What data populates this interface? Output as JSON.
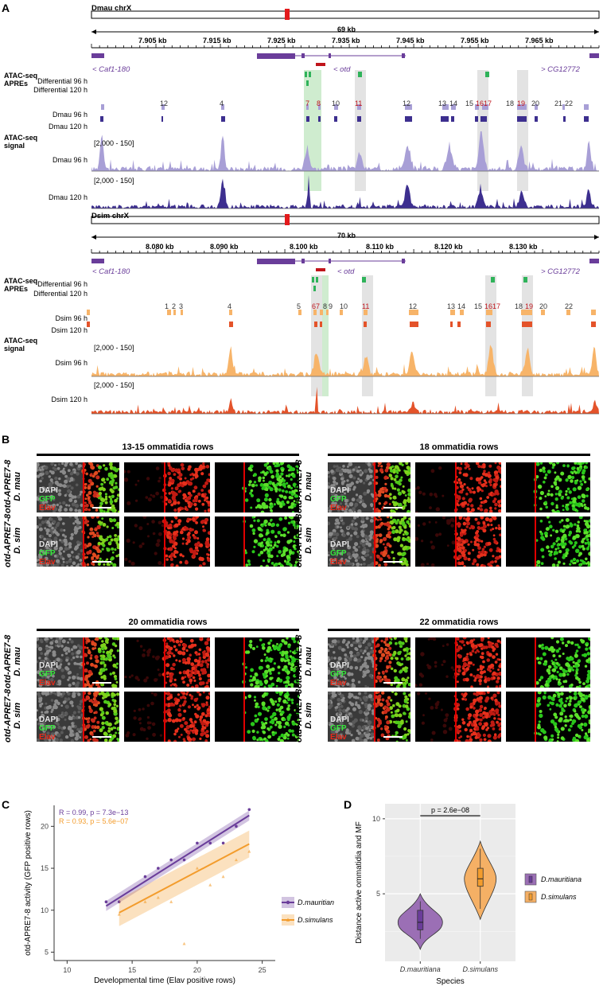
{
  "panelA": {
    "letter": "A",
    "dmau": {
      "chr": "Dmau chrX",
      "span": "69 kb",
      "ticks": [
        "7.905 kb",
        "7.915 kb",
        "7.925 kb",
        "7.935 kb",
        "7.945 kb",
        "7.955 kb",
        "7.965 kb"
      ],
      "genes": {
        "left": "< Caf1-180",
        "middle": "< otd",
        "right": "> CG12772"
      },
      "track_labels": [
        "Differential 96 h",
        "Differential 120 h",
        "Dmau 96 h",
        "Dmau 120 h",
        "Dmau 96 h",
        "Dmau 120 h"
      ],
      "group_labels": {
        "apres_1": "ATAC-seq",
        "apres_2": "APREs",
        "signal_1": "ATAC-seq",
        "signal_2": "signal"
      },
      "range": [
        "[2,000 - 150]",
        "[2,000 - 150]"
      ],
      "apre_numbers": [
        "12",
        "4",
        "7",
        "8",
        "10",
        "11",
        "12",
        "13",
        "14",
        "15",
        "1617",
        "18",
        "19",
        "20",
        "21",
        "22"
      ]
    },
    "dsim": {
      "chr": "Dsim chrX",
      "span": "70 kb",
      "ticks": [
        "8.080 kb",
        "8.090 kb",
        "8.100 kb",
        "8.110 kb",
        "8.120 kb",
        "8.130 kb"
      ],
      "genes": {
        "left": "< Caf1-180",
        "middle": "< otd",
        "right": "> CG12772"
      },
      "track_labels": [
        "Differential 96 h",
        "Differential 120 h",
        "Dsim 96 h",
        "Dsim 120 h",
        "Dsim 96 h",
        "Dsim 120 h"
      ],
      "group_labels": {
        "apres_1": "ATAC-seq",
        "apres_2": "APREs",
        "signal_1": "ATAC-seq",
        "signal_2": "signal"
      },
      "range": [
        "[2,000 - 150]",
        "[2,000 - 150]"
      ],
      "apre_numbers": [
        "1",
        "2",
        "3",
        "4",
        "5",
        "67",
        "8",
        "9",
        "10",
        "11",
        "12",
        "13",
        "14",
        "15",
        "1617",
        "18",
        "19",
        "20",
        "22"
      ]
    },
    "colors": {
      "dmau_light": "#a89fd6",
      "dmau_dark": "#3d2f8f",
      "dsim_light": "#f7b469",
      "dsim_dark": "#e4532a",
      "diff": "#2fb35a",
      "gene": "#6a3d9a",
      "highlight_green": "#cfeccf",
      "highlight_grey": "#e3e3e3",
      "marker": "#e31a1c"
    }
  },
  "panelB": {
    "letter": "B",
    "groups": [
      {
        "title": "13-15 ommatidia rows"
      },
      {
        "title": "18 ommatidia rows"
      },
      {
        "title": "20 ommatidia rows"
      },
      {
        "title": "22 ommatidia rows"
      }
    ],
    "row_labels": {
      "construct": "otd-APRE7-8",
      "mau": "D. mau",
      "sim": "D. sim"
    },
    "overlay": {
      "dapi": "DAPI",
      "gfp": "GFP",
      "elav": "Elav"
    }
  },
  "panelC": {
    "letter": "C",
    "stats": {
      "mau": "R = 0.99, p = 7.3e−13",
      "sim": "R = 0.93, p = 5.6e−07"
    },
    "chart_data": {
      "type": "scatter",
      "xlabel": "Developmental time (Elav positive rows)",
      "ylabel": "otd-APRE7-8 activity (GFP positive rows)",
      "xlim": [
        9,
        26
      ],
      "ylim": [
        4,
        22.5
      ],
      "xticks": [
        10,
        15,
        20,
        25
      ],
      "yticks": [
        5,
        10,
        15,
        20
      ],
      "series": [
        {
          "name": "D.mauritiana",
          "color": "#6a3d9a",
          "x": [
            13,
            14,
            16,
            17,
            18,
            19,
            20,
            21,
            22,
            23,
            24
          ],
          "y": [
            11,
            11,
            14,
            15,
            16,
            16,
            18,
            18,
            18,
            20,
            22
          ],
          "fit": [
            [
              13,
              10.5
            ],
            [
              24,
              21.3
            ]
          ]
        },
        {
          "name": "D.simulans",
          "color": "#f39c2c",
          "x": [
            14,
            16,
            17,
            18,
            19,
            20,
            21,
            22,
            23,
            24
          ],
          "y": [
            9.5,
            11,
            11.5,
            11,
            6,
            15,
            13,
            14,
            16,
            17
          ],
          "fit": [
            [
              14,
              9.7
            ],
            [
              24,
              17.9
            ]
          ]
        }
      ]
    }
  },
  "panelD": {
    "letter": "D",
    "pvalue": "p = 2.6e−08",
    "chart_data": {
      "type": "violin",
      "xlabel": "Species",
      "ylabel": "Distance active ommatidia and MF",
      "ylim": [
        0.5,
        11
      ],
      "yticks": [
        5,
        10
      ],
      "categories": [
        "D.mauritiana",
        "D.simulans"
      ],
      "series": [
        {
          "name": "D.mauritiana",
          "color": "#9b6fb5",
          "median": 3.1,
          "q1": 2.6,
          "q3": 3.9,
          "min": 2,
          "max": 4.5
        },
        {
          "name": "D.simulans",
          "color": "#f5b065",
          "median": 6,
          "q1": 5.5,
          "q3": 6.7,
          "min": 4,
          "max": 8
        }
      ]
    }
  }
}
